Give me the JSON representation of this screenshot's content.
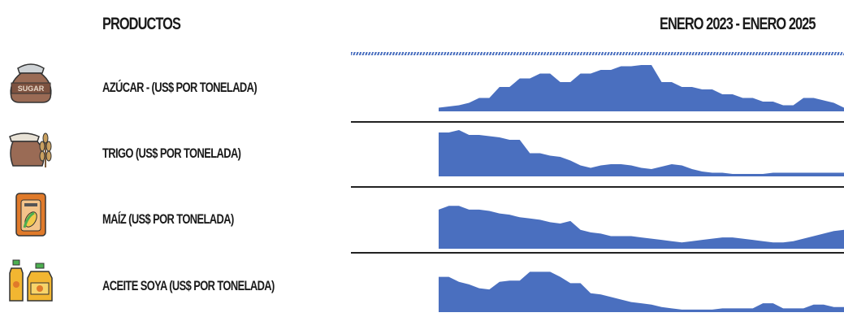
{
  "header": {
    "products_label": "PRODUCTOS",
    "date_range": "ENERO 2023 - ENERO 2025"
  },
  "colors": {
    "series": "#4a6fbf",
    "divider": "#222222"
  },
  "products": [
    {
      "label": "AZÚCAR - (US$ POR TONELADA)",
      "icon": "sugar-sack-icon",
      "icon_text": "SUGAR"
    },
    {
      "label": "TRIGO (US$ POR TONELADA)",
      "icon": "wheat-sack-icon"
    },
    {
      "label": "MAÍZ (US$ POR TONELADA)",
      "icon": "corn-bag-icon"
    },
    {
      "label": "ACEITE SOYA (US$ POR TONELADA)",
      "icon": "soybean-oil-bottles-icon"
    }
  ],
  "chart_data": [
    {
      "type": "area",
      "series": [
        {
          "values": [
            6,
            8,
            10,
            14,
            22,
            22,
            40,
            40,
            54,
            54,
            62,
            62,
            48,
            48,
            62,
            62,
            68,
            68,
            74,
            74,
            76,
            76,
            48,
            48,
            40,
            40,
            36,
            36,
            28,
            28,
            22,
            22,
            16,
            16,
            10,
            10,
            22,
            22,
            18,
            14,
            6
          ]
        }
      ],
      "ylim": [
        0,
        80
      ]
    },
    {
      "type": "area",
      "series": [
        {
          "values": [
            72,
            72,
            76,
            68,
            68,
            66,
            64,
            60,
            60,
            38,
            38,
            34,
            32,
            26,
            18,
            14,
            18,
            20,
            20,
            18,
            14,
            12,
            16,
            20,
            18,
            12,
            8,
            6,
            6,
            4,
            4,
            4,
            4,
            6,
            6,
            6,
            6,
            6,
            6,
            6,
            6
          ]
        }
      ],
      "ylim": [
        0,
        80
      ]
    },
    {
      "type": "area",
      "series": [
        {
          "values": [
            62,
            68,
            68,
            62,
            62,
            60,
            56,
            54,
            50,
            48,
            46,
            42,
            40,
            44,
            30,
            26,
            24,
            20,
            20,
            20,
            18,
            16,
            14,
            12,
            10,
            12,
            14,
            16,
            18,
            18,
            16,
            14,
            12,
            10,
            10,
            12,
            16,
            20,
            24,
            28,
            30
          ]
        }
      ],
      "ylim": [
        0,
        80
      ]
    },
    {
      "type": "area",
      "series": [
        {
          "values": [
            56,
            56,
            48,
            44,
            38,
            36,
            48,
            50,
            50,
            64,
            64,
            64,
            56,
            46,
            46,
            30,
            28,
            24,
            20,
            16,
            14,
            12,
            8,
            6,
            4,
            4,
            4,
            4,
            6,
            6,
            6,
            6,
            14,
            14,
            6,
            6,
            6,
            12,
            12,
            8,
            8
          ]
        }
      ],
      "ylim": [
        0,
        80
      ]
    }
  ]
}
